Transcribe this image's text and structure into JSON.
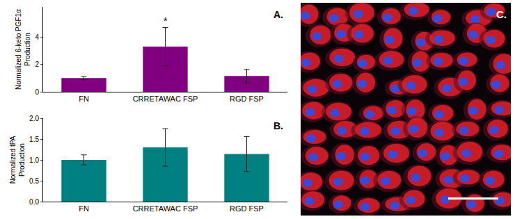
{
  "chart_data": [
    {
      "type": "bar",
      "panel_label": "A.",
      "y_label": "Normalized 6-keto PGF1α Production",
      "categories": [
        "FN",
        "CRRETAWAC FSP",
        "RGD FSP"
      ],
      "values": [
        1.0,
        3.3,
        1.15
      ],
      "error": [
        0.12,
        1.4,
        0.5
      ],
      "color": "#800080",
      "ylim": [
        0,
        6.2
      ],
      "yticks": [
        0,
        2,
        4
      ],
      "grid": false,
      "annotations": [
        {
          "text": "*",
          "category": "CRRETAWAC FSP"
        }
      ]
    },
    {
      "type": "bar",
      "panel_label": "B.",
      "y_label": "Normalized tPA Production",
      "categories": [
        "FN",
        "CRRETAWAC FSP",
        "RGD FSP"
      ],
      "values": [
        1.0,
        1.3,
        1.14
      ],
      "error": [
        0.12,
        0.45,
        0.42
      ],
      "color": "#008080",
      "ylim": [
        0,
        2.0
      ],
      "yticks": [
        {
          "value": 0,
          "label": "0.0"
        },
        {
          "value": 0.5,
          "label": "0.5"
        },
        {
          "value": 1,
          "label": "1.0"
        },
        {
          "value": 1.5,
          "label": "1.5"
        },
        {
          "value": 2,
          "label": "2.0"
        }
      ],
      "grid": false
    }
  ],
  "image": {
    "panel_label": "C."
  }
}
